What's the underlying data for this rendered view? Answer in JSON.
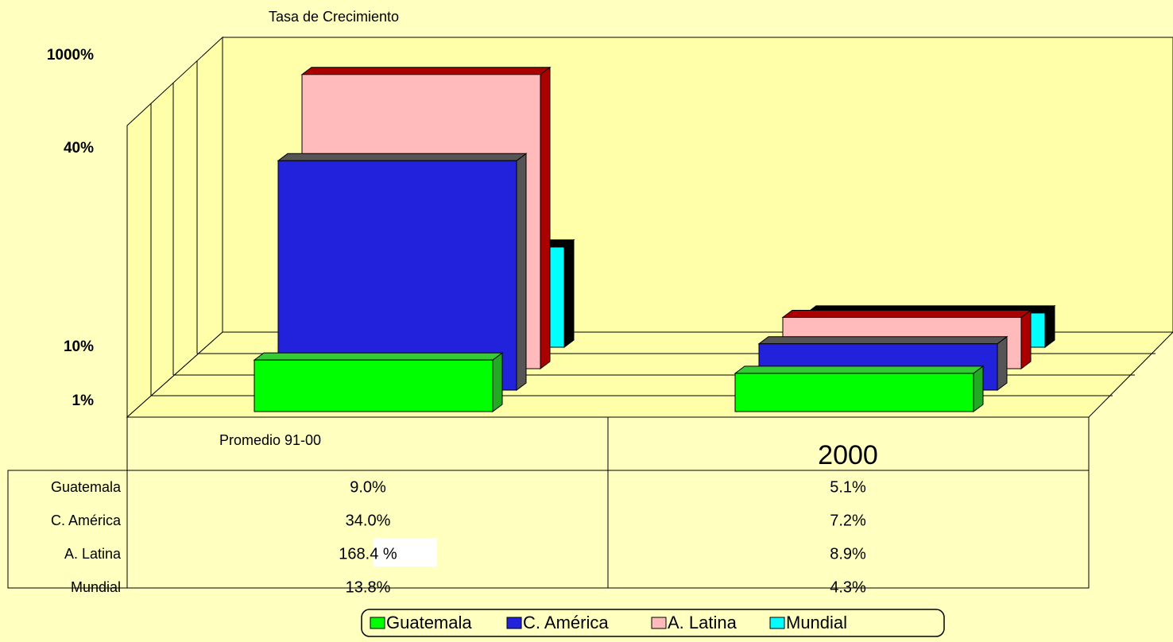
{
  "chart_data": {
    "type": "bar",
    "title": "Tasa de Crecimiento",
    "categories": [
      "Promedio 91-00",
      "2000"
    ],
    "series": [
      {
        "name": "Guatemala",
        "color": "#00ff00",
        "values": [
          9.0,
          5.1
        ],
        "value_labels": [
          "9.0%",
          "5.1%"
        ]
      },
      {
        "name": "C. América",
        "color": "#2222dd",
        "values": [
          34.0,
          7.2
        ],
        "value_labels": [
          "34.0%",
          "7.2%"
        ]
      },
      {
        "name": "A. Latina",
        "color": "#ffbbbb",
        "values": [
          168.4,
          8.9
        ],
        "value_labels": [
          "168.4 %",
          "8.9%"
        ]
      },
      {
        "name": "Mundial",
        "color": "#00ffff",
        "values": [
          13.8,
          4.3
        ],
        "value_labels": [
          "13.8%",
          "4.3%"
        ]
      }
    ],
    "ylim": [
      1,
      1000
    ],
    "yticks": [
      {
        "value": 1,
        "label": "1%"
      },
      {
        "value": 10,
        "label": "10%"
      },
      {
        "value": 40,
        "label": "40%"
      },
      {
        "value": 1000,
        "label": "1000%"
      }
    ],
    "log_scale": true,
    "legend": "bottom"
  }
}
